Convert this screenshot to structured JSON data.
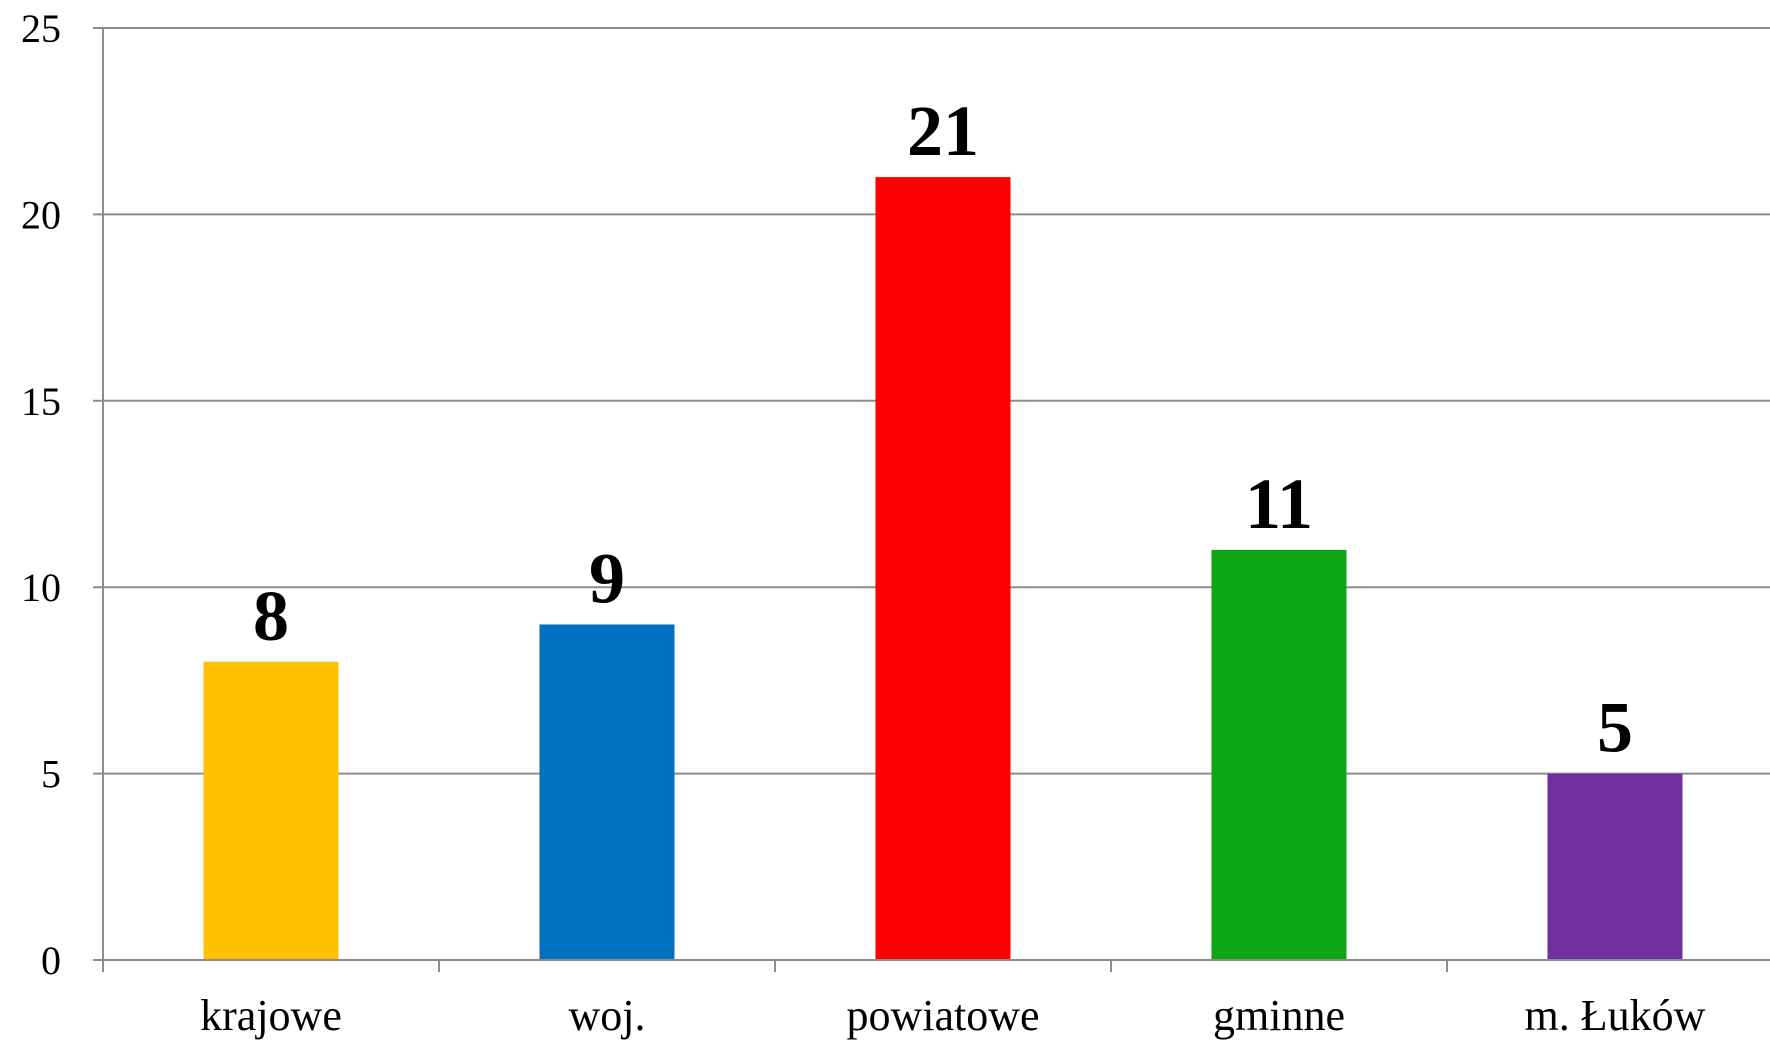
{
  "chart_data": {
    "type": "bar",
    "categories": [
      "krajowe",
      "woj.",
      "powiatowe",
      "gminne",
      "m. Łuków"
    ],
    "values": [
      8,
      9,
      21,
      11,
      5
    ],
    "colors": [
      "#ffc000",
      "#0070c0",
      "#ff0000",
      "#0ca615",
      "#7030a0"
    ],
    "data_labels": [
      "8",
      "9",
      "21",
      "11",
      "5"
    ],
    "yticks": [
      "0",
      "5",
      "10",
      "15",
      "20",
      "25"
    ],
    "ylim": [
      0,
      25
    ],
    "grid": true,
    "legend": "none"
  }
}
